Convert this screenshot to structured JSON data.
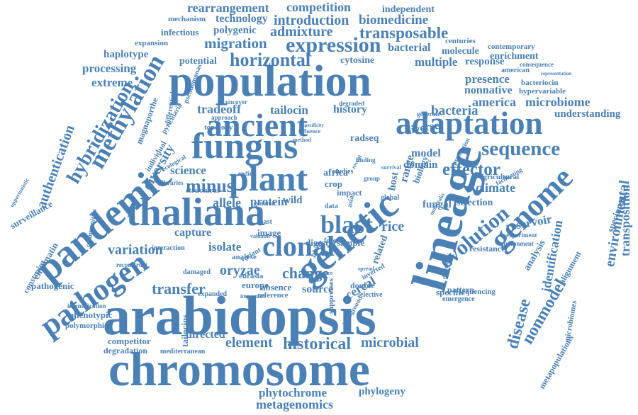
{
  "color": "#4a80b4",
  "words": [
    {
      "text": "rearrangement"
    },
    {
      "text": "competition"
    },
    {
      "text": "independent"
    },
    {
      "text": "mechanism"
    },
    {
      "text": "technology"
    },
    {
      "text": "introduction"
    },
    {
      "text": "biomedicine"
    },
    {
      "text": "infectious"
    },
    {
      "text": "polygenic"
    },
    {
      "text": "admixture"
    },
    {
      "text": "transposable"
    },
    {
      "text": "expansion"
    },
    {
      "text": "migration"
    },
    {
      "text": "expression"
    },
    {
      "text": "bacterial"
    },
    {
      "text": "centuries"
    },
    {
      "text": "contemporary"
    },
    {
      "text": "haplotype"
    },
    {
      "text": "molecule"
    },
    {
      "text": "enrichment"
    },
    {
      "text": "potential"
    },
    {
      "text": "horizontal"
    },
    {
      "text": "cytosine"
    },
    {
      "text": "multiple"
    },
    {
      "text": "response"
    },
    {
      "text": "consequence"
    },
    {
      "text": "processing"
    },
    {
      "text": "american"
    },
    {
      "text": "population"
    },
    {
      "text": "presence"
    },
    {
      "text": "bacteriocin"
    },
    {
      "text": "extreme"
    },
    {
      "text": "representation"
    },
    {
      "text": "nonnative"
    },
    {
      "text": "hypervariable"
    },
    {
      "text": "methylation"
    },
    {
      "text": "america"
    },
    {
      "text": "microbiome"
    },
    {
      "text": "hybridization"
    },
    {
      "text": "tradeoff"
    },
    {
      "text": "tailocin"
    },
    {
      "text": "history"
    },
    {
      "text": "bacteria"
    },
    {
      "text": "understanding"
    },
    {
      "text": "ancient"
    },
    {
      "text": "adaptation"
    },
    {
      "text": "authentication"
    },
    {
      "text": "pandemic"
    },
    {
      "text": "fungus"
    },
    {
      "text": "radseq"
    },
    {
      "text": "sequence"
    },
    {
      "text": "diversity"
    },
    {
      "text": "effector"
    },
    {
      "text": "model"
    },
    {
      "text": "domain"
    },
    {
      "text": "science"
    },
    {
      "text": "plant"
    },
    {
      "text": "lineage"
    },
    {
      "text": "agricultural"
    },
    {
      "text": "climate"
    },
    {
      "text": "minus"
    },
    {
      "text": "genome"
    },
    {
      "text": "thaliana"
    },
    {
      "text": "genetic"
    },
    {
      "text": "environmental"
    },
    {
      "text": "allele"
    },
    {
      "text": "protein"
    },
    {
      "text": "wild"
    },
    {
      "text": "selection"
    },
    {
      "text": "surveillance"
    },
    {
      "text": "blast"
    },
    {
      "text": "rice"
    },
    {
      "text": "fungal"
    },
    {
      "text": "reservoir"
    },
    {
      "text": "specimen"
    },
    {
      "text": "transposition"
    },
    {
      "text": "capture"
    },
    {
      "text": "clonal"
    },
    {
      "text": "evolution"
    },
    {
      "text": "chromatin"
    },
    {
      "text": "variation"
    },
    {
      "text": "pathogen"
    },
    {
      "text": "isolate"
    },
    {
      "text": "digest"
    },
    {
      "text": "sample"
    },
    {
      "text": "resistance"
    },
    {
      "text": "analysis"
    },
    {
      "text": "identification"
    },
    {
      "text": "constraint"
    },
    {
      "text": "oryzae"
    },
    {
      "text": "change"
    },
    {
      "text": "alignment"
    },
    {
      "text": "pathogenic"
    },
    {
      "text": "transfer"
    },
    {
      "text": "europe"
    },
    {
      "text": "cereal"
    },
    {
      "text": "nonmodel"
    },
    {
      "text": "disease"
    },
    {
      "text": "absence"
    },
    {
      "text": "source"
    },
    {
      "text": "reference"
    },
    {
      "text": "pattern"
    },
    {
      "text": "specific"
    },
    {
      "text": "sequencing"
    },
    {
      "text": "expanded"
    },
    {
      "text": "microbiomes"
    },
    {
      "text": "arabidopsis"
    },
    {
      "text": "phenotypic"
    },
    {
      "text": "tailocins"
    },
    {
      "text": "polymorphic"
    },
    {
      "text": "directed"
    },
    {
      "text": "element"
    },
    {
      "text": "historical"
    },
    {
      "text": "microbial"
    },
    {
      "text": "competitor"
    },
    {
      "text": "degradation"
    },
    {
      "text": "chromosome"
    },
    {
      "text": "phytochrome"
    },
    {
      "text": "phylogeny"
    },
    {
      "text": "metagenomics"
    },
    {
      "text": "metapopulations"
    },
    {
      "text": "communities"
    },
    {
      "text": "mediterranean"
    },
    {
      "text": "africa"
    },
    {
      "text": "crop"
    },
    {
      "text": "impact"
    },
    {
      "text": "data"
    },
    {
      "text": "host"
    },
    {
      "text": "range"
    },
    {
      "text": "biology"
    },
    {
      "text": "global"
    },
    {
      "text": "asia"
    },
    {
      "text": "forest"
    },
    {
      "text": "phage"
    },
    {
      "text": "related"
    },
    {
      "text": "double"
    },
    {
      "text": "inverted"
    },
    {
      "text": "selective"
    },
    {
      "text": "suppresses"
    },
    {
      "text": "individual"
    },
    {
      "text": "libraries"
    },
    {
      "text": "structural"
    },
    {
      "text": "image"
    },
    {
      "text": "past"
    },
    {
      "text": "genomic"
    },
    {
      "text": "diverse"
    },
    {
      "text": "generate"
    },
    {
      "text": "pseudomonas"
    },
    {
      "text": "magnaporthe"
    },
    {
      "text": "pyricularia"
    },
    {
      "text": "topology"
    },
    {
      "text": "differential"
    },
    {
      "text": "approach"
    },
    {
      "text": "ecological"
    },
    {
      "text": "opportunistic"
    },
    {
      "text": "interaction"
    },
    {
      "text": "reconstruct"
    },
    {
      "text": "damaged"
    },
    {
      "text": "eurasia"
    },
    {
      "text": "analyse"
    },
    {
      "text": "intensification"
    },
    {
      "text": "experiment"
    },
    {
      "text": "environment"
    },
    {
      "text": "emergence"
    },
    {
      "text": "discovery"
    },
    {
      "text": "facilitating"
    },
    {
      "text": "outbreaks"
    },
    {
      "text": "production"
    },
    {
      "text": "uncover"
    },
    {
      "text": "degraded"
    },
    {
      "text": "specificity"
    },
    {
      "text": "method"
    },
    {
      "text": "influence"
    },
    {
      "text": "studies"
    },
    {
      "text": "finding"
    },
    {
      "text": "survival"
    },
    {
      "text": "reveal"
    },
    {
      "text": "group"
    },
    {
      "text": "coding"
    },
    {
      "text": "variant"
    },
    {
      "text": "valuable"
    },
    {
      "text": "important"
    },
    {
      "text": "evidence"
    },
    {
      "text": "spread"
    },
    {
      "text": "background"
    }
  ]
}
